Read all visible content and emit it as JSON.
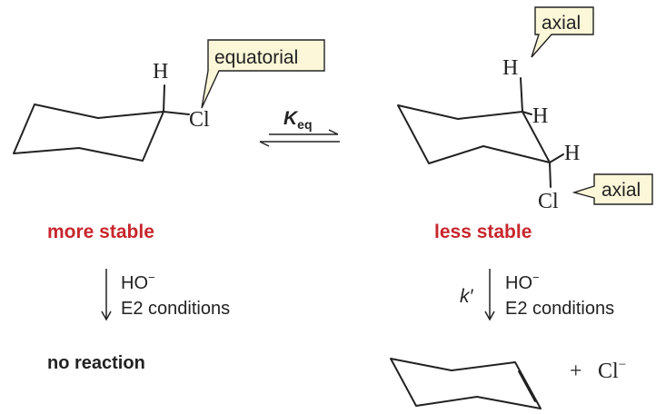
{
  "left": {
    "h_label": "H",
    "cl_label": "Cl",
    "callout": "equatorial",
    "stability": "more stable",
    "reagent": "HO",
    "reagent_sup": "−",
    "conditions": "E2 conditions",
    "result": "no reaction"
  },
  "equilibrium": {
    "k_label": "K",
    "k_sub": "eq"
  },
  "right": {
    "h_top": "H",
    "h_mid": "H",
    "h_low": "H",
    "cl_label": "Cl",
    "callout_top": "axial",
    "callout_bottom": "axial",
    "stability": "less stable",
    "rate_label": "k′",
    "reagent": "HO",
    "reagent_sup": "−",
    "conditions": "E2 conditions",
    "plus": "+",
    "product_ion": "Cl",
    "product_ion_sup": "−"
  },
  "colors": {
    "accent_red": "#c8262c",
    "callout_fill": "#fbf7d8",
    "ink": "#222222"
  }
}
